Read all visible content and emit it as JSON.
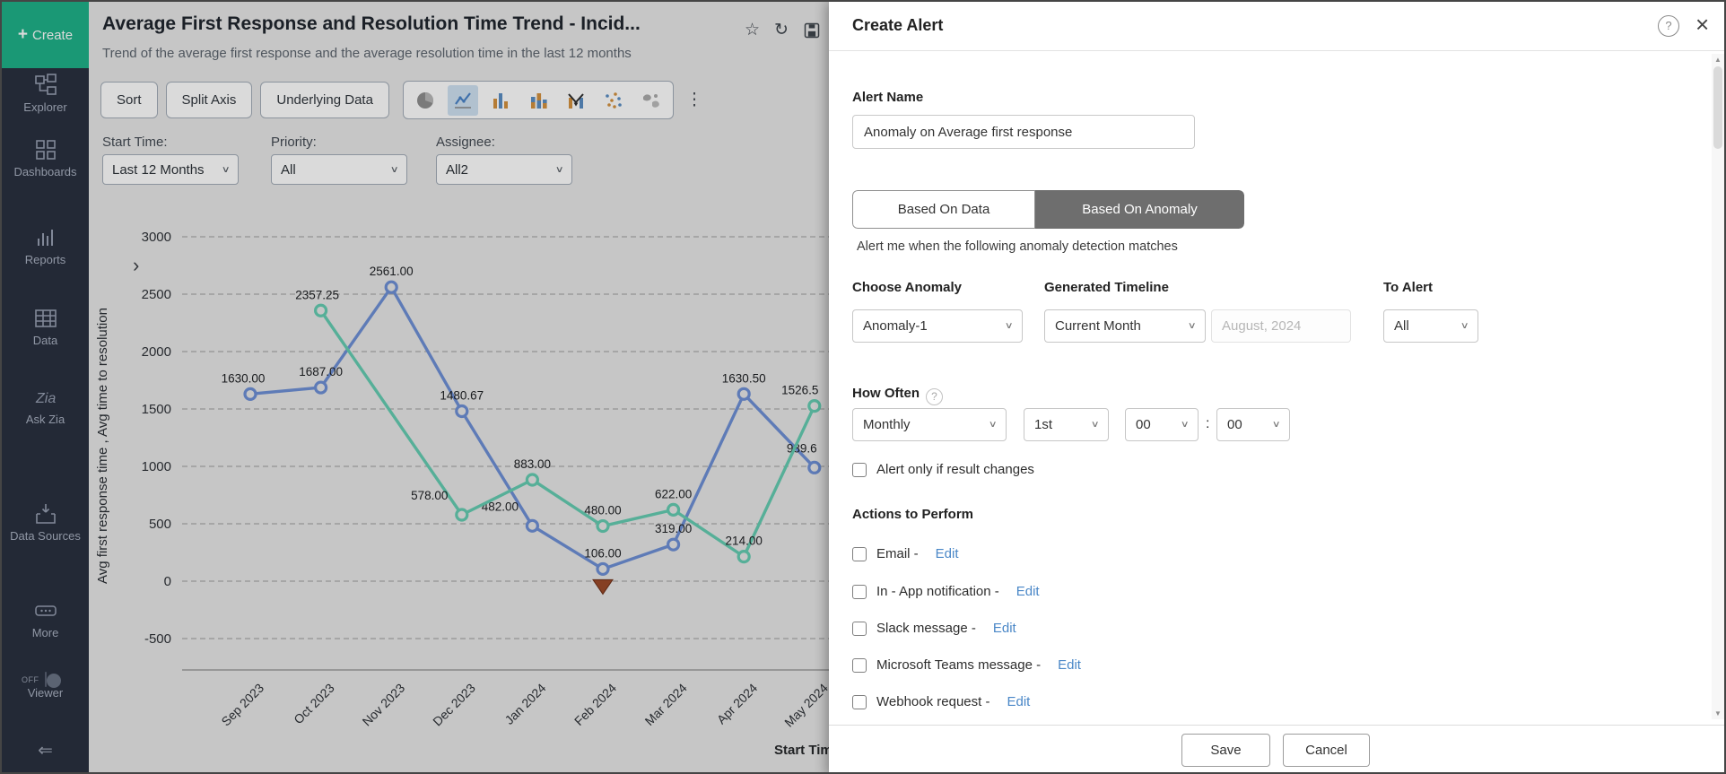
{
  "icons": {
    "plus": "+",
    "star": "☆",
    "refresh": "↻",
    "more_vertical": "⋮",
    "chevron_down": "∨",
    "expand": "›",
    "collapse": "⇐",
    "help": "?",
    "close": "×",
    "scroll_up": "▲",
    "scroll_down": "▼"
  },
  "colors": {
    "accent_green": "#1fb289",
    "series_blue": "#6e90d6",
    "series_teal": "#65cdb2",
    "anomaly_brown": "#9c4a2a",
    "edit_link_blue": "#4a87c7",
    "active_tab_gray": "#6e6e6e"
  },
  "sidebar": {
    "create_label": "Create",
    "items": [
      {
        "label": "Explorer"
      },
      {
        "label": "Dashboards"
      },
      {
        "label": "Reports"
      },
      {
        "label": "Data"
      },
      {
        "label": "Ask Zia"
      },
      {
        "label": "Data Sources"
      },
      {
        "label": "More"
      }
    ],
    "viewer_toggle": {
      "label": "Viewer",
      "state": "OFF"
    }
  },
  "report": {
    "title": "Average First Response and Resolution Time Trend - Incid...",
    "subtitle": "Trend of the average first response and the average resolution time in the last 12 months",
    "toolbar": {
      "sort": "Sort",
      "split_axis": "Split Axis",
      "underlying_data": "Underlying Data"
    },
    "filters": [
      {
        "label": "Start Time:",
        "value": "Last 12 Months"
      },
      {
        "label": "Priority:",
        "value": "All"
      },
      {
        "label": "Assignee:",
        "value": "All2"
      }
    ]
  },
  "chart_data": {
    "type": "line",
    "title": "Average First Response and Resolution Time Trend - Incident Module",
    "categories": [
      "Sep 2023",
      "Oct 2023",
      "Nov 2023",
      "Dec 2023",
      "Jan 2024",
      "Feb 2024",
      "Mar 2024",
      "Apr 2024",
      "May 2024"
    ],
    "series": [
      {
        "name": "Avg first response time",
        "color": "#6e90d6",
        "values": [
          1630.0,
          1687.0,
          2561.0,
          1480.67,
          482.0,
          106.0,
          319.0,
          1630.5,
          989.6
        ],
        "labels": [
          "1630.00",
          "1687.00",
          "2561.00",
          "1480.67",
          "482.00",
          "106.00",
          "319.00",
          "1630.50",
          "989.6"
        ]
      },
      {
        "name": "Avg time to resolution",
        "color": "#65cdb2",
        "values": [
          null,
          2357.25,
          null,
          578.0,
          883.0,
          480.0,
          622.0,
          214.0,
          1526.5
        ],
        "labels": [
          "",
          "2357.25",
          "",
          "578.00",
          "883.00",
          "480.00",
          "622.00",
          "214.00",
          "1526.5"
        ]
      }
    ],
    "ylabel": "Avg first response time , Avg time to resolution",
    "xlabel": "Start Time",
    "yticks": [
      3000,
      2500,
      2000,
      1500,
      1000,
      500,
      0,
      -500
    ],
    "ylim": [
      -500,
      3000
    ],
    "grid": true,
    "legend": "none",
    "anomaly_marker": {
      "series_index": 0,
      "category_index": 5,
      "value": 106.0
    }
  },
  "panel": {
    "title": "Create Alert",
    "alert_name": {
      "label": "Alert Name",
      "value": "Anomaly on Average first response"
    },
    "tabs": [
      {
        "label": "Based On Data",
        "active": false
      },
      {
        "label": "Based On Anomaly",
        "active": true
      }
    ],
    "caption": "Alert me when the following anomaly detection matches",
    "choose_anomaly": {
      "label": "Choose Anomaly",
      "value": "Anomaly-1"
    },
    "generated_timeline": {
      "label": "Generated Timeline",
      "value": "Current Month",
      "date_value": "August, 2024"
    },
    "to_alert": {
      "label": "To Alert",
      "value": "All"
    },
    "how_often": {
      "label": "How Often",
      "frequency": "Monthly",
      "day": "1st",
      "hour": "00",
      "separator": ":",
      "minute": "00"
    },
    "result_changes_checkbox": "Alert only if result changes",
    "actions": {
      "label": "Actions to Perform",
      "items": [
        {
          "label": "Email -",
          "link": "Edit"
        },
        {
          "label": "In - App notification -",
          "link": "Edit"
        },
        {
          "label": "Slack message -",
          "link": "Edit"
        },
        {
          "label": "Microsoft Teams message -",
          "link": "Edit"
        },
        {
          "label": "Webhook request -",
          "link": "Edit"
        }
      ]
    },
    "footer": {
      "save": "Save",
      "cancel": "Cancel"
    }
  }
}
